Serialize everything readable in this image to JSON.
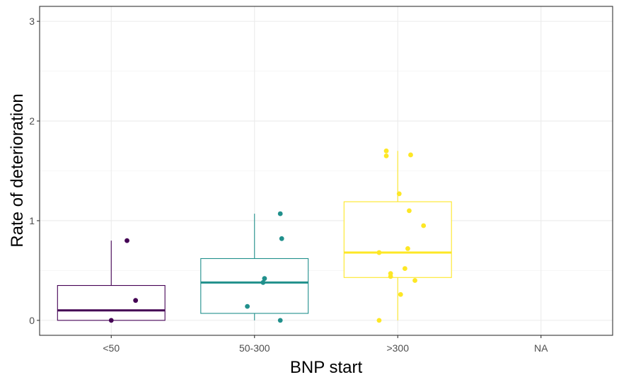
{
  "chart_data": {
    "type": "boxplot",
    "xlabel": "BNP start",
    "ylabel": "Rate of deterioration",
    "ylim": [
      -0.15,
      3.15
    ],
    "y_ticks": [
      0,
      1,
      2,
      3
    ],
    "grid": true,
    "categories": [
      "<50",
      "50-300",
      ">300",
      "NA"
    ],
    "groups": [
      {
        "name": "<50",
        "color": "#440154",
        "box": {
          "q1": 0.0,
          "median": 0.1,
          "q3": 0.35,
          "whisker_low": 0.0,
          "whisker_high": 0.8
        },
        "points": [
          {
            "offset": 0.11,
            "y": 0.8
          },
          {
            "offset": 0.17,
            "y": 0.2
          },
          {
            "offset": 0.0,
            "y": 0.0
          }
        ]
      },
      {
        "name": "50-300",
        "color": "#21908C",
        "box": {
          "q1": 0.07,
          "median": 0.38,
          "q3": 0.62,
          "whisker_low": 0.0,
          "whisker_high": 1.07
        },
        "points": [
          {
            "offset": 0.18,
            "y": 1.07
          },
          {
            "offset": 0.19,
            "y": 0.82
          },
          {
            "offset": 0.07,
            "y": 0.42
          },
          {
            "offset": 0.06,
            "y": 0.38
          },
          {
            "offset": -0.05,
            "y": 0.14
          },
          {
            "offset": 0.18,
            "y": 0.0
          }
        ]
      },
      {
        "name": ">300",
        "color": "#FDE725",
        "box": {
          "q1": 0.43,
          "median": 0.68,
          "q3": 1.19,
          "whisker_low": 0.0,
          "whisker_high": 1.7
        },
        "points": [
          {
            "offset": -0.08,
            "y": 1.65
          },
          {
            "offset": -0.08,
            "y": 1.7
          },
          {
            "offset": 0.09,
            "y": 1.66
          },
          {
            "offset": 0.01,
            "y": 1.27
          },
          {
            "offset": 0.08,
            "y": 1.1
          },
          {
            "offset": 0.18,
            "y": 0.95
          },
          {
            "offset": 0.07,
            "y": 0.72
          },
          {
            "offset": -0.13,
            "y": 0.68
          },
          {
            "offset": 0.05,
            "y": 0.52
          },
          {
            "offset": -0.05,
            "y": 0.47
          },
          {
            "offset": -0.05,
            "y": 0.44
          },
          {
            "offset": 0.12,
            "y": 0.4
          },
          {
            "offset": 0.02,
            "y": 0.26
          },
          {
            "offset": -0.13,
            "y": 0.0
          }
        ]
      },
      {
        "name": "NA",
        "color": "#cccccc",
        "box": null,
        "points": []
      }
    ]
  }
}
